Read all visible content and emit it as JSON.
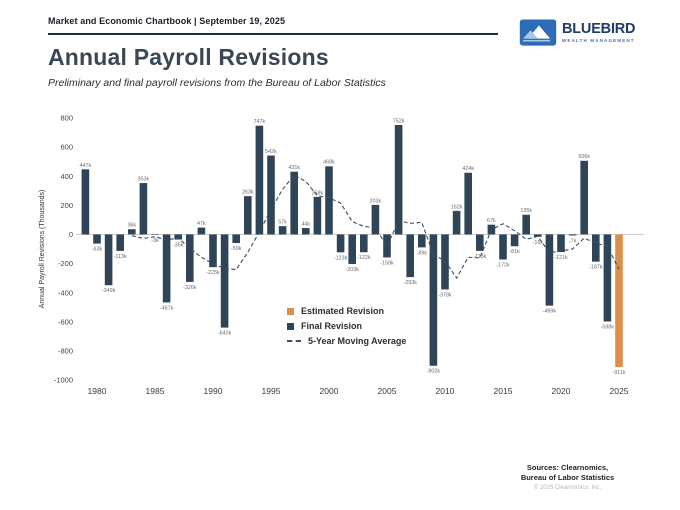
{
  "header": {
    "chartbook": "Market and Economic Chartbook | September 19, 2025",
    "title": "Annual Payroll Revisions",
    "subtitle": "Preliminary and final payroll revisions from the Bureau of Labor Statistics"
  },
  "logo": {
    "name": "BLUEBIRD",
    "tagline": "WEALTH MANAGEMENT"
  },
  "footer": {
    "sources_line1": "Sources: Clearnomics,",
    "sources_line2": "Bureau of Labor Statistics",
    "copyright": "© 2025 Clearnomics, Inc."
  },
  "chart_data": {
    "type": "bar",
    "title": "Annual Payroll Revisions",
    "ylabel": "Annual Payroll Revisions (Thousands)",
    "ylim": [
      -1000,
      800
    ],
    "yticks": [
      800,
      600,
      400,
      200,
      0,
      -200,
      -400,
      -600,
      -800,
      -1000
    ],
    "xticks": [
      1980,
      1985,
      1990,
      1995,
      2000,
      2005,
      2010,
      2015,
      2020,
      2025
    ],
    "grid": false,
    "years": [
      1979,
      1980,
      1981,
      1982,
      1983,
      1984,
      1985,
      1986,
      1987,
      1988,
      1989,
      1990,
      1991,
      1992,
      1993,
      1994,
      1995,
      1996,
      1997,
      1998,
      1999,
      2000,
      2001,
      2002,
      2003,
      2004,
      2005,
      2006,
      2007,
      2008,
      2009,
      2010,
      2011,
      2012,
      2013,
      2014,
      2015,
      2016,
      2017,
      2018,
      2019,
      2020,
      2021,
      2022,
      2023,
      2024,
      2025
    ],
    "values": [
      447,
      -63,
      -349,
      -113,
      36,
      353,
      -3,
      -467,
      -35,
      -326,
      47,
      -225,
      -640,
      -59,
      263,
      747,
      542,
      57,
      431,
      44,
      258,
      468,
      -123,
      -203,
      -122,
      203,
      -158,
      752,
      -293,
      -89,
      -902,
      -378,
      162,
      424,
      -113,
      67,
      -172,
      -81,
      135,
      -16,
      -489,
      -121,
      -7,
      506,
      -187,
      -598,
      -911
    ],
    "labels": [
      "447k",
      "-63k",
      "-349k",
      "-113k",
      "36k",
      "353k",
      "-3k",
      "-467k",
      "-35k",
      "-326k",
      "47k",
      "-225k",
      "-640k",
      "-59k",
      "263k",
      "747k",
      "542k",
      "57k",
      "431k",
      "44k",
      "258k",
      "468k",
      "-123k",
      "-203k",
      "-122k",
      "203k",
      "-158k",
      "752k",
      "-293k",
      "-89k",
      "-902k",
      "-378k",
      "162k",
      "424k",
      "-113k",
      "67k",
      "-172k",
      "-81k",
      "135k",
      "-16k",
      "-489k",
      "-121k",
      "-7k",
      "506k",
      "-187k",
      "-598k",
      "-911k"
    ],
    "estimated_year": 2025,
    "moving_average_window": 5,
    "legend_position": "inside lower center",
    "legend": [
      {
        "label": "Estimated Revision",
        "type": "square",
        "color": "#dd8e4a",
        "icon": "estimated-revision-swatch-icon"
      },
      {
        "label": "Final Revision",
        "type": "square",
        "color": "#2f4456",
        "icon": "final-revision-swatch-icon"
      },
      {
        "label": "5-Year Moving Average",
        "type": "dashed-line",
        "color": "#3a4f63",
        "icon": "moving-average-dash-icon"
      }
    ],
    "colors": {
      "final": "#2f4456",
      "estimated": "#dd8e4a",
      "moving_avg": "#3a4f63",
      "bar_label": "#6a6a6a",
      "tick_label": "#454545",
      "zero_line": "#c2c8ce"
    }
  }
}
